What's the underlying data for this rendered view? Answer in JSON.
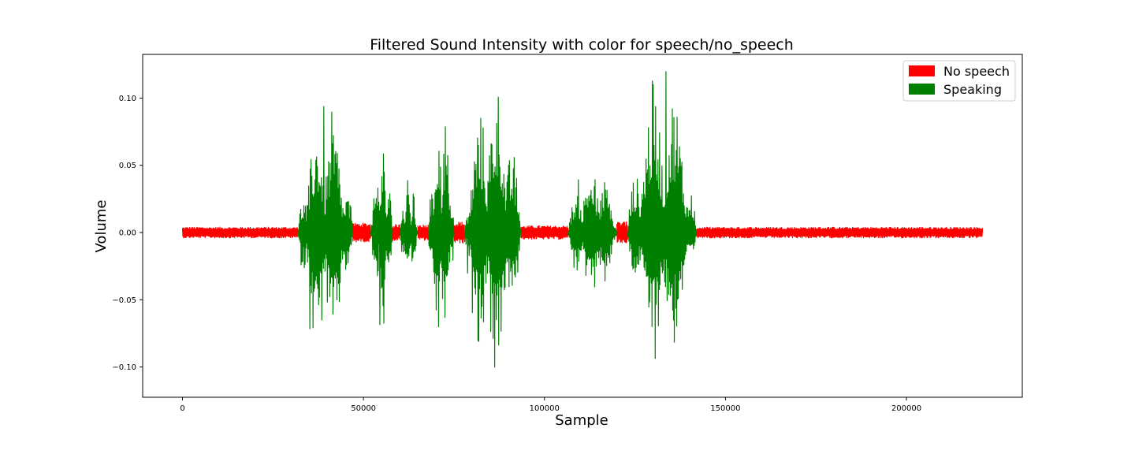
{
  "chart_data": {
    "type": "line",
    "title": "Filtered Sound Intensity with color for speech/no_speech",
    "xlabel": "Sample",
    "ylabel": "Volume",
    "xlim": [
      -11000,
      232000
    ],
    "ylim": [
      -0.1225,
      0.1325
    ],
    "x_ticks": [
      0,
      50000,
      100000,
      150000,
      200000
    ],
    "x_tick_labels": [
      "0",
      "50000",
      "100000",
      "150000",
      "200000"
    ],
    "y_ticks": [
      -0.1,
      -0.05,
      0.0,
      0.05,
      0.1
    ],
    "y_tick_labels": [
      "−0.10",
      "−0.05",
      "0.00",
      "0.05",
      "0.10"
    ],
    "grid": false,
    "legend_position": "top-right",
    "legend": [
      {
        "label": "No speech",
        "color": "#ff0000"
      },
      {
        "label": "Speaking",
        "color": "#008000"
      }
    ],
    "series": [
      {
        "name": "No speech",
        "color": "#ff0000",
        "segments": [
          {
            "x_start": 0,
            "x_end": 32000,
            "amplitude": 0.004
          },
          {
            "x_start": 47000,
            "x_end": 52000,
            "amplitude": 0.007
          },
          {
            "x_start": 58000,
            "x_end": 60000,
            "amplitude": 0.006
          },
          {
            "x_start": 65000,
            "x_end": 68000,
            "amplitude": 0.006
          },
          {
            "x_start": 75000,
            "x_end": 78000,
            "amplitude": 0.008
          },
          {
            "x_start": 93500,
            "x_end": 106500,
            "amplitude": 0.005
          },
          {
            "x_start": 120000,
            "x_end": 123000,
            "amplitude": 0.008
          },
          {
            "x_start": 142000,
            "x_end": 221000,
            "amplitude": 0.004
          }
        ]
      },
      {
        "name": "Speaking",
        "color": "#008000",
        "segments": [
          {
            "x_start": 32000,
            "x_end": 47000,
            "peak_max": 0.094,
            "peak_min": -0.1
          },
          {
            "x_start": 52000,
            "x_end": 58000,
            "peak_max": 0.07,
            "peak_min": -0.07
          },
          {
            "x_start": 60000,
            "x_end": 65000,
            "peak_max": 0.04,
            "peak_min": -0.045
          },
          {
            "x_start": 68000,
            "x_end": 75000,
            "peak_max": 0.1,
            "peak_min": -0.098
          },
          {
            "x_start": 78000,
            "x_end": 93500,
            "peak_max": 0.119,
            "peak_min": -0.111
          },
          {
            "x_start": 106500,
            "x_end": 120000,
            "peak_max": 0.055,
            "peak_min": -0.055
          },
          {
            "x_start": 123000,
            "x_end": 142000,
            "peak_max": 0.121,
            "peak_min": -0.097
          }
        ]
      }
    ]
  }
}
